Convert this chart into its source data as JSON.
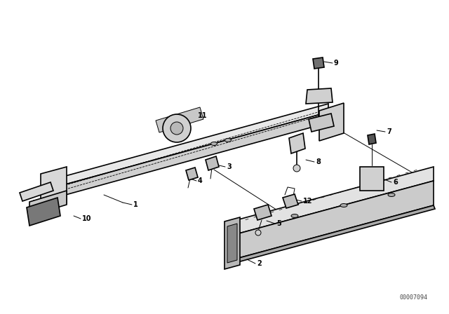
{
  "bg_color": "#ffffff",
  "line_color": "#000000",
  "text_color": "#000000",
  "diagram_id": "00007094",
  "figsize": [
    6.4,
    4.48
  ],
  "dpi": 100
}
